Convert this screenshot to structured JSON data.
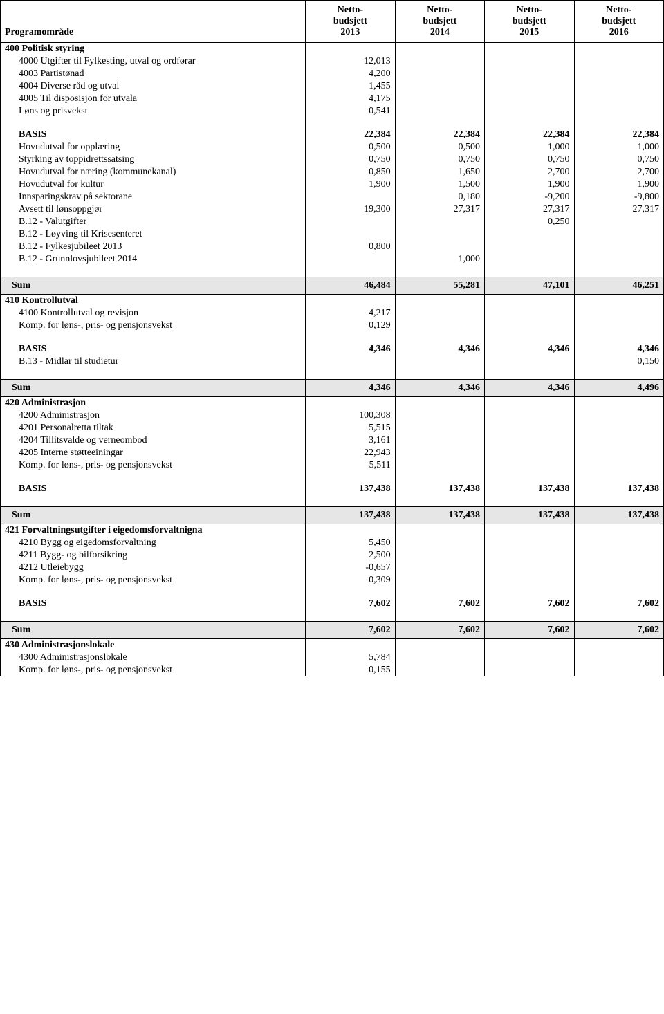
{
  "header": {
    "program_label": "Programområde",
    "col_lines": [
      "Netto-",
      "budsjett"
    ],
    "years": [
      "2013",
      "2014",
      "2015",
      "2016"
    ]
  },
  "sum_label": "Sum",
  "basis_label": "BASIS",
  "colors": {
    "sum_bg": "#e6e6e6",
    "border": "#000000",
    "text": "#000000",
    "background": "#ffffff"
  },
  "sections": [
    {
      "title": "400 Politisk styring",
      "detail": [
        {
          "label": "4000 Utgifter til Fylkesting, utval og ordførar",
          "v": [
            "12,013",
            "",
            "",
            ""
          ]
        },
        {
          "label": "4003 Partistønad",
          "v": [
            "4,200",
            "",
            "",
            ""
          ]
        },
        {
          "label": "4004 Diverse råd og utval",
          "v": [
            "1,455",
            "",
            "",
            ""
          ]
        },
        {
          "label": "4005 Til disposisjon for utvala",
          "v": [
            "4,175",
            "",
            "",
            ""
          ]
        },
        {
          "label": "Løns og prisvekst",
          "v": [
            "0,541",
            "",
            "",
            ""
          ]
        }
      ],
      "basis": [
        "22,384",
        "22,384",
        "22,384",
        "22,384"
      ],
      "adjust": [
        {
          "label": "Hovudutval for opplæring",
          "v": [
            "0,500",
            "0,500",
            "1,000",
            "1,000"
          ]
        },
        {
          "label": "Styrking av toppidrettssatsing",
          "v": [
            "0,750",
            "0,750",
            "0,750",
            "0,750"
          ]
        },
        {
          "label": "Hovudutval for næring (kommunekanal)",
          "v": [
            "0,850",
            "1,650",
            "2,700",
            "2,700"
          ]
        },
        {
          "label": "Hovudutval for kultur",
          "v": [
            "1,900",
            "1,500",
            "1,900",
            "1,900"
          ]
        },
        {
          "label": "Innsparingskrav på sektorane",
          "v": [
            "",
            "0,180",
            "-9,200",
            "-9,800"
          ]
        },
        {
          "label": "Avsett til lønsoppgjør",
          "v": [
            "19,300",
            "27,317",
            "27,317",
            "27,317"
          ]
        },
        {
          "label": "B.12 - Valutgifter",
          "v": [
            "",
            "",
            "0,250",
            ""
          ]
        },
        {
          "label": "B.12 - Løyving til Krisesenteret",
          "v": [
            "",
            "",
            "",
            ""
          ]
        },
        {
          "label": "B.12 - Fylkesjubileet 2013",
          "v": [
            "0,800",
            "",
            "",
            ""
          ]
        },
        {
          "label": "B.12 - Grunnlovsjubileet 2014",
          "v": [
            "",
            "1,000",
            "",
            ""
          ]
        }
      ],
      "sum": [
        "46,484",
        "55,281",
        "47,101",
        "46,251"
      ]
    },
    {
      "title": "410 Kontrollutval",
      "detail": [
        {
          "label": "4100 Kontrollutval og revisjon",
          "v": [
            "4,217",
            "",
            "",
            ""
          ]
        },
        {
          "label": "Komp. for løns-, pris- og pensjonsvekst",
          "v": [
            "0,129",
            "",
            "",
            ""
          ]
        }
      ],
      "basis": [
        "4,346",
        "4,346",
        "4,346",
        "4,346"
      ],
      "adjust": [
        {
          "label": "B.13 - Midlar til studietur",
          "v": [
            "",
            "",
            "",
            "0,150"
          ]
        }
      ],
      "sum": [
        "4,346",
        "4,346",
        "4,346",
        "4,496"
      ]
    },
    {
      "title": "420 Administrasjon",
      "detail": [
        {
          "label": "4200 Administrasjon",
          "v": [
            "100,308",
            "",
            "",
            ""
          ]
        },
        {
          "label": "4201 Personalretta tiltak",
          "v": [
            "5,515",
            "",
            "",
            ""
          ]
        },
        {
          "label": "4204 Tillitsvalde og verneombod",
          "v": [
            "3,161",
            "",
            "",
            ""
          ]
        },
        {
          "label": "4205 Interne støtteeiningar",
          "v": [
            "22,943",
            "",
            "",
            ""
          ]
        },
        {
          "label": "Komp. for løns-, pris- og pensjonsvekst",
          "v": [
            "5,511",
            "",
            "",
            ""
          ]
        }
      ],
      "basis": [
        "137,438",
        "137,438",
        "137,438",
        "137,438"
      ],
      "adjust": [],
      "sum": [
        "137,438",
        "137,438",
        "137,438",
        "137,438"
      ]
    },
    {
      "title": "421 Forvaltningsutgifter i eigedomsforvaltnigna",
      "detail": [
        {
          "label": "4210 Bygg og eigedomsforvaltning",
          "v": [
            "5,450",
            "",
            "",
            ""
          ]
        },
        {
          "label": "4211 Bygg- og bilforsikring",
          "v": [
            "2,500",
            "",
            "",
            ""
          ]
        },
        {
          "label": "4212 Utleiebygg",
          "v": [
            "-0,657",
            "",
            "",
            ""
          ]
        },
        {
          "label": "Komp. for løns-, pris- og pensjonsvekst",
          "v": [
            "0,309",
            "",
            "",
            ""
          ]
        }
      ],
      "basis": [
        "7,602",
        "7,602",
        "7,602",
        "7,602"
      ],
      "adjust": [],
      "sum": [
        "7,602",
        "7,602",
        "7,602",
        "7,602"
      ]
    },
    {
      "title": "430 Administrasjonslokale",
      "detail": [
        {
          "label": "4300 Administrasjonslokale",
          "v": [
            "5,784",
            "",
            "",
            ""
          ]
        },
        {
          "label": "Komp. for løns-, pris- og pensjonsvekst",
          "v": [
            "0,155",
            "",
            "",
            ""
          ]
        }
      ],
      "basis": null,
      "adjust": [],
      "sum": null
    }
  ]
}
